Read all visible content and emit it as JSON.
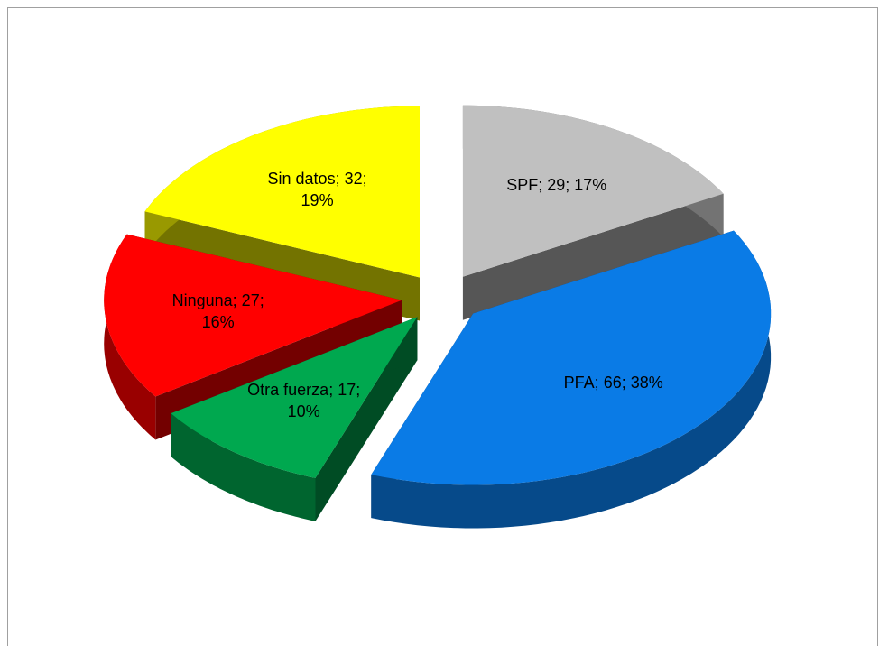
{
  "chart_data": {
    "type": "pie",
    "categories": [
      "SPF",
      "PFA",
      "Otra fuerza",
      "Ninguna",
      "Sin datos"
    ],
    "values": [
      29,
      66,
      17,
      27,
      32
    ],
    "value_labels": [
      "SPF; 29; 17%",
      "PFA; 66; 38%",
      "Otra fuerza; 17; 10%",
      "Ninguna; 27; 16%",
      "Sin datos; 32; 19%"
    ],
    "colors": [
      "#c0c0c0",
      "#0a7be6",
      "#00a84f",
      "#ff0000",
      "#ffff00"
    ]
  }
}
